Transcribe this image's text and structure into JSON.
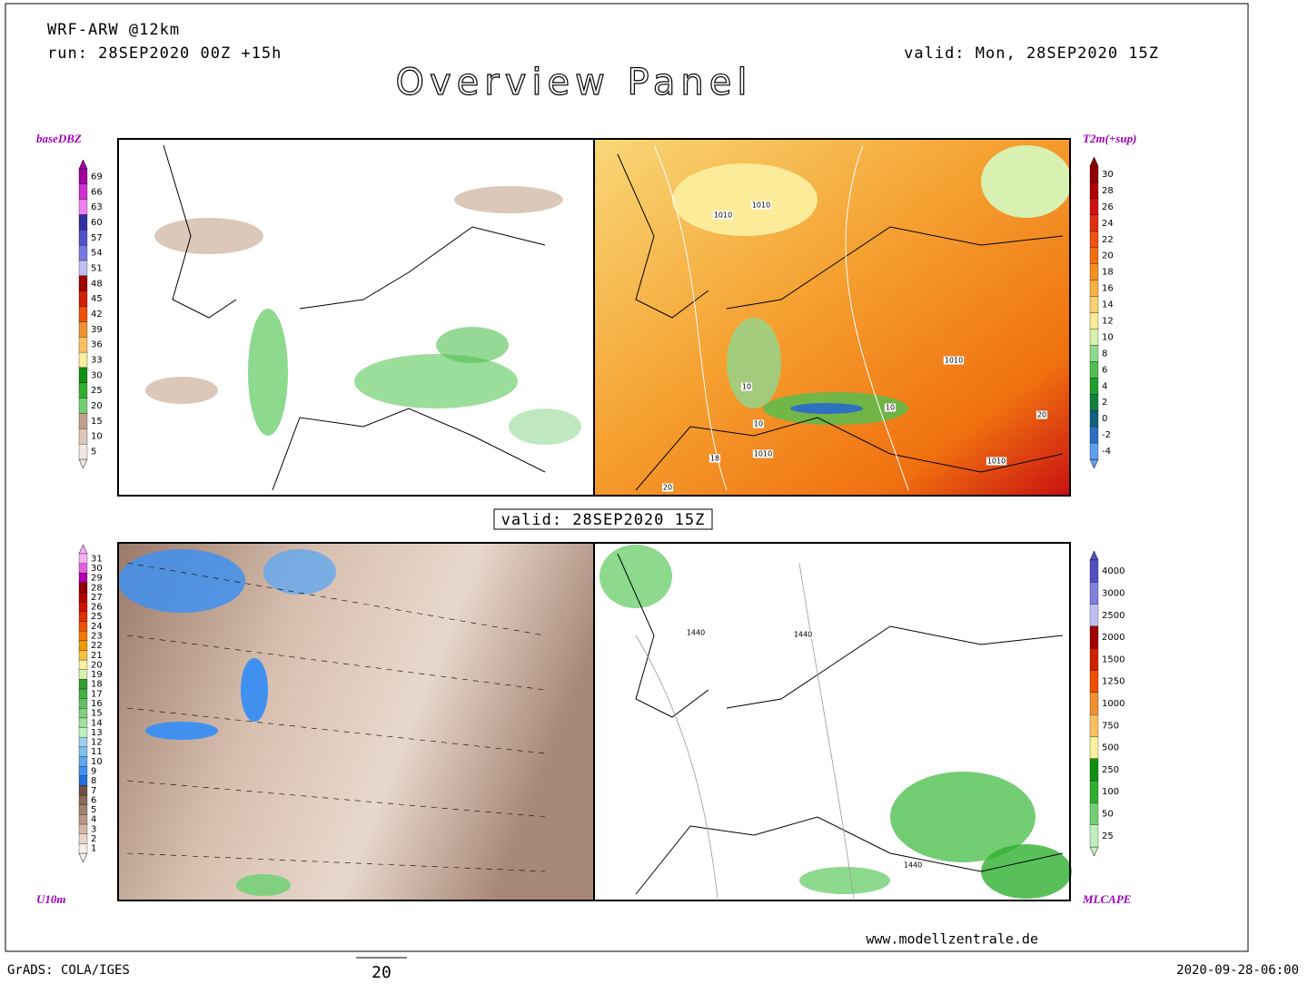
{
  "header": {
    "model": "WRF-ARW @12km",
    "run": "run: 28SEP2020 00Z +15h",
    "valid": "valid: Mon, 28SEP2020 15Z",
    "title": "Overview Panel"
  },
  "center_label": "valid: 28SEP2020 15Z",
  "panels": [
    {
      "label": "baseDBZ",
      "colorbar": {
        "labels": [
          69,
          66,
          63,
          60,
          57,
          54,
          51,
          48,
          45,
          42,
          39,
          36,
          33,
          30,
          25,
          20,
          15,
          10,
          5
        ],
        "colors": [
          "#a000a0",
          "#d030d0",
          "#f080f0",
          "#3030a0",
          "#5050c8",
          "#7878e0",
          "#c0c0f0",
          "#a00000",
          "#d02000",
          "#f05000",
          "#f09030",
          "#f8c060",
          "#f8f0a0",
          "#109010",
          "#30b030",
          "#70d070",
          "#c0a090",
          "#dcc8b8",
          "#f0e8e0"
        ]
      },
      "contour_labels": []
    },
    {
      "label": "T2m(+sup)",
      "colorbar": {
        "labels": [
          30,
          28,
          26,
          24,
          22,
          20,
          18,
          16,
          14,
          12,
          10,
          8,
          6,
          4,
          2,
          0,
          -2,
          -4
        ],
        "colors": [
          "#900000",
          "#b00000",
          "#d01010",
          "#e03010",
          "#f05010",
          "#f07010",
          "#f59020",
          "#f8b040",
          "#fad070",
          "#fcec9a",
          "#d8f0b0",
          "#90d890",
          "#50c050",
          "#20a030",
          "#108040",
          "#106080",
          "#3070c0",
          "#60a0f0"
        ]
      },
      "contour_labels": [
        "1010",
        "1010",
        "1010",
        "10",
        "10",
        "1010",
        "10",
        "18",
        "20",
        "1010",
        "20"
      ]
    },
    {
      "label": "U10m",
      "colorbar": {
        "labels": [
          31,
          30,
          29,
          28,
          27,
          26,
          25,
          24,
          23,
          22,
          21,
          20,
          19,
          18,
          17,
          16,
          15,
          14,
          13,
          12,
          11,
          10,
          9,
          8,
          7,
          6,
          5,
          4,
          3,
          2,
          1
        ],
        "colors": [
          "#f8b0f8",
          "#e060e0",
          "#b000b0",
          "#900000",
          "#b00000",
          "#d01000",
          "#e03000",
          "#f05000",
          "#f07800",
          "#f09800",
          "#f8c040",
          "#f8f0a0",
          "#d8f0b0",
          "#30a030",
          "#40b040",
          "#60c060",
          "#80d080",
          "#a0e0a0",
          "#c0f0c0",
          "#a0d0f0",
          "#80c0f0",
          "#60a8f0",
          "#4090f0",
          "#2070e0",
          "#705040",
          "#8a6a5a",
          "#a08070",
          "#b89888",
          "#d0b8a8",
          "#e8d8c8",
          "#f8f0e8"
        ]
      },
      "contour_labels": []
    },
    {
      "label": "MLCAPE",
      "colorbar": {
        "labels": [
          4000,
          3000,
          2500,
          2000,
          1500,
          1250,
          1000,
          750,
          500,
          250,
          100,
          50,
          25
        ],
        "colors": [
          "#5050c0",
          "#8080e0",
          "#c0c0f0",
          "#a00000",
          "#d02000",
          "#f05000",
          "#f09030",
          "#f8c060",
          "#f8f0a0",
          "#109010",
          "#30b030",
          "#70d070",
          "#c0f0c0"
        ]
      },
      "contour_labels": [
        "1440",
        "1440",
        "1440"
      ]
    }
  ],
  "footer": {
    "site": "www.modellzentrale.de",
    "software": "GrADS: COLA/IGES",
    "vector_scale": "20",
    "timestamp": "2020-09-28-06:00"
  }
}
